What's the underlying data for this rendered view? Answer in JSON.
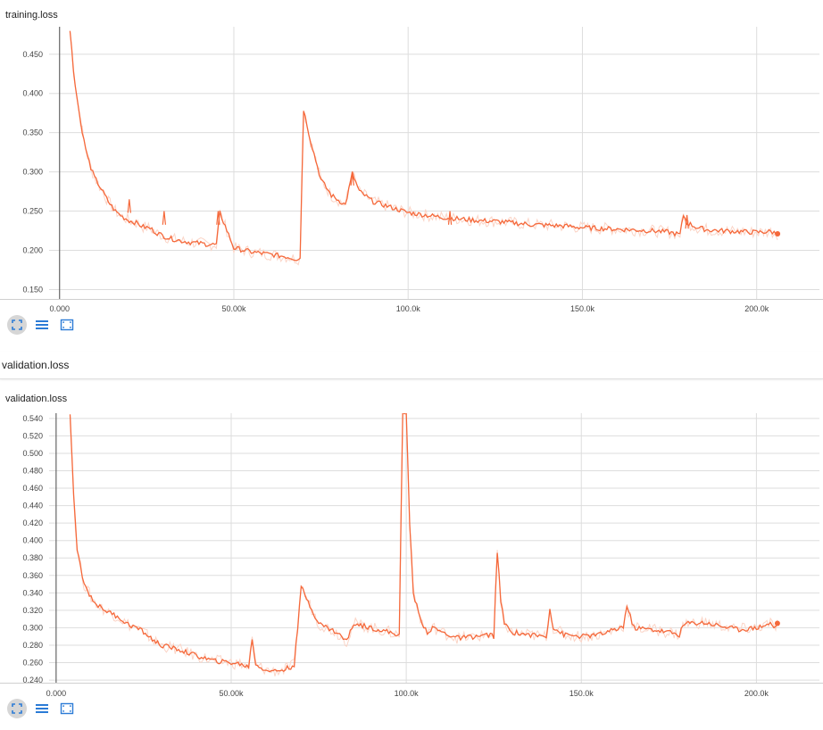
{
  "charts": [
    {
      "card_title": "training.loss",
      "chart_data": {
        "type": "line",
        "title": "training.loss",
        "x_ticks": [
          "0.000",
          "50.00k",
          "100.0k",
          "150.0k",
          "200.0k"
        ],
        "y_ticks": [
          "0.150",
          "0.200",
          "0.250",
          "0.300",
          "0.350",
          "0.400",
          "0.450"
        ],
        "xlim": [
          -3000,
          218000
        ],
        "ylim": [
          0.138,
          0.485
        ],
        "grid": true,
        "series": [
          {
            "color": "#f5683a",
            "raw_color": "#fbd4c6",
            "x": [
              3000,
              4000,
              5000,
              6000,
              7000,
              8000,
              9000,
              10000,
              12000,
              14000,
              16000,
              18000,
              20000,
              22000,
              24000,
              26000,
              28000,
              30000,
              32000,
              35000,
              38000,
              42000,
              45000,
              46000,
              50000,
              55000,
              60000,
              65000,
              68000,
              69000,
              70000,
              72000,
              75000,
              78000,
              82000,
              84000,
              86000,
              90000,
              95000,
              100000,
              105000,
              110000,
              115000,
              120000,
              125000,
              130000,
              135000,
              140000,
              145000,
              150000,
              155000,
              160000,
              165000,
              170000,
              175000,
              178000,
              179000,
              180000,
              183000,
              186000,
              190000,
              195000,
              200000,
              204000,
              206000
            ],
            "values": [
              0.48,
              0.43,
              0.395,
              0.365,
              0.34,
              0.32,
              0.305,
              0.293,
              0.278,
              0.262,
              0.25,
              0.243,
              0.238,
              0.235,
              0.23,
              0.228,
              0.222,
              0.218,
              0.215,
              0.212,
              0.21,
              0.208,
              0.207,
              0.248,
              0.203,
              0.198,
              0.195,
              0.192,
              0.189,
              0.19,
              0.38,
              0.34,
              0.29,
              0.27,
              0.258,
              0.298,
              0.275,
              0.262,
              0.255,
              0.248,
              0.245,
              0.242,
              0.24,
              0.238,
              0.237,
              0.235,
              0.233,
              0.232,
              0.231,
              0.229,
              0.228,
              0.227,
              0.226,
              0.225,
              0.223,
              0.22,
              0.245,
              0.235,
              0.229,
              0.226,
              0.225,
              0.224,
              0.223,
              0.224,
              0.221
            ],
            "spikes": [
              [
                20000,
                0.265
              ],
              [
                30000,
                0.25
              ],
              [
                45500,
                0.25
              ],
              [
                84000,
                0.3
              ],
              [
                112000,
                0.25
              ],
              [
                180000,
                0.245
              ]
            ],
            "end_marker": [
              206000,
              0.221
            ]
          }
        ]
      }
    },
    {
      "section_title": "validation.loss",
      "card_title": "validation.loss",
      "chart_data": {
        "type": "line",
        "title": "validation.loss",
        "x_ticks": [
          "0.000",
          "50.00k",
          "100.0k",
          "150.0k",
          "200.0k"
        ],
        "y_ticks": [
          "0.240",
          "0.260",
          "0.280",
          "0.300",
          "0.320",
          "0.340",
          "0.360",
          "0.380",
          "0.400",
          "0.420",
          "0.440",
          "0.460",
          "0.480",
          "0.500",
          "0.520",
          "0.540"
        ],
        "xlim": [
          -2000,
          218000
        ],
        "ylim": [
          0.237,
          0.546
        ],
        "grid": true,
        "series": [
          {
            "color": "#f5683a",
            "raw_color": "#fbd4c6",
            "x": [
              4000,
              5000,
              6000,
              7000,
              8000,
              10000,
              12000,
              15000,
              18000,
              20000,
              23000,
              25000,
              28000,
              30000,
              35000,
              40000,
              45000,
              50000,
              53000,
              55000,
              56000,
              57000,
              58000,
              60000,
              62000,
              65000,
              67000,
              68000,
              69000,
              70000,
              72000,
              75000,
              80000,
              83000,
              85000,
              90000,
              95000,
              98000,
              99000,
              100000,
              101000,
              102000,
              104000,
              106000,
              108000,
              110000,
              115000,
              120000,
              124000,
              125000,
              126000,
              127000,
              128000,
              130000,
              135000,
              140000,
              141000,
              142000,
              145000,
              150000,
              155000,
              160000,
              162000,
              163000,
              165000,
              170000,
              175000,
              178000,
              179000,
              180000,
              185000,
              190000,
              195000,
              200000,
              204000,
              205000,
              206000
            ],
            "values": [
              0.545,
              0.45,
              0.39,
              0.37,
              0.35,
              0.335,
              0.325,
              0.318,
              0.312,
              0.305,
              0.3,
              0.295,
              0.285,
              0.28,
              0.275,
              0.268,
              0.262,
              0.26,
              0.258,
              0.255,
              0.288,
              0.258,
              0.255,
              0.252,
              0.25,
              0.252,
              0.255,
              0.258,
              0.3,
              0.347,
              0.33,
              0.305,
              0.295,
              0.285,
              0.305,
              0.3,
              0.295,
              0.292,
              0.546,
              0.546,
              0.42,
              0.34,
              0.31,
              0.295,
              0.3,
              0.295,
              0.288,
              0.29,
              0.292,
              0.29,
              0.388,
              0.33,
              0.305,
              0.295,
              0.292,
              0.29,
              0.322,
              0.3,
              0.292,
              0.29,
              0.292,
              0.298,
              0.302,
              0.325,
              0.3,
              0.298,
              0.295,
              0.292,
              0.302,
              0.305,
              0.306,
              0.302,
              0.298,
              0.3,
              0.305,
              0.3,
              0.305
            ],
            "end_marker": [
              206000,
              0.305
            ]
          }
        ]
      }
    }
  ],
  "toolbar_icons": [
    "expand-icon",
    "list-icon",
    "fit-domain-icon"
  ],
  "colors": {
    "line": "#f5683a",
    "raw_line": "#fbd4c6",
    "grid": "#dddddd",
    "axis": "#666666",
    "icon": "#2b7bd6"
  }
}
